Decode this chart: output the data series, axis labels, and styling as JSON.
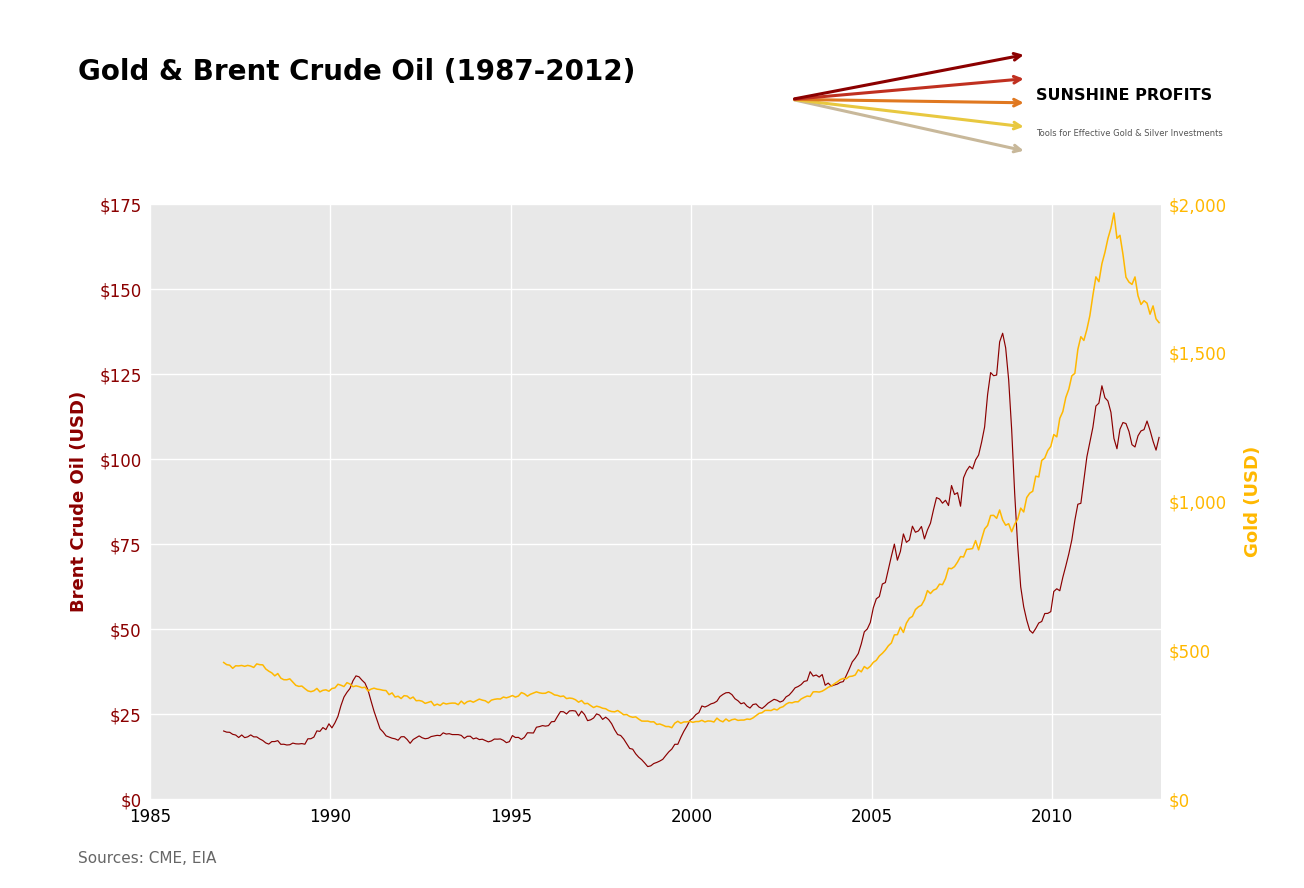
{
  "title": "Gold & Brent Crude Oil (1987-2012)",
  "source_text": "Sources: CME, EIA",
  "left_ylabel": "Brent Crude Oil (USD)",
  "right_ylabel": "Gold (USD)",
  "left_color": "#8B0000",
  "right_color": "#FFB800",
  "left_yticks": [
    0,
    25,
    50,
    75,
    100,
    125,
    150,
    175
  ],
  "right_yticks": [
    0,
    500,
    1000,
    1500,
    2000
  ],
  "left_ylim": [
    0,
    175
  ],
  "right_ylim": [
    0,
    2000
  ],
  "xlim": [
    1985.0,
    2013.0
  ],
  "xticks": [
    1985,
    1990,
    1995,
    2000,
    2005,
    2010
  ],
  "background_color": "#e8e8e8",
  "outer_background": "#ffffff",
  "title_fontsize": 20,
  "axis_label_fontsize": 13,
  "tick_fontsize": 12,
  "source_fontsize": 11,
  "grid_color": "#ffffff",
  "grid_lw": 1.0
}
